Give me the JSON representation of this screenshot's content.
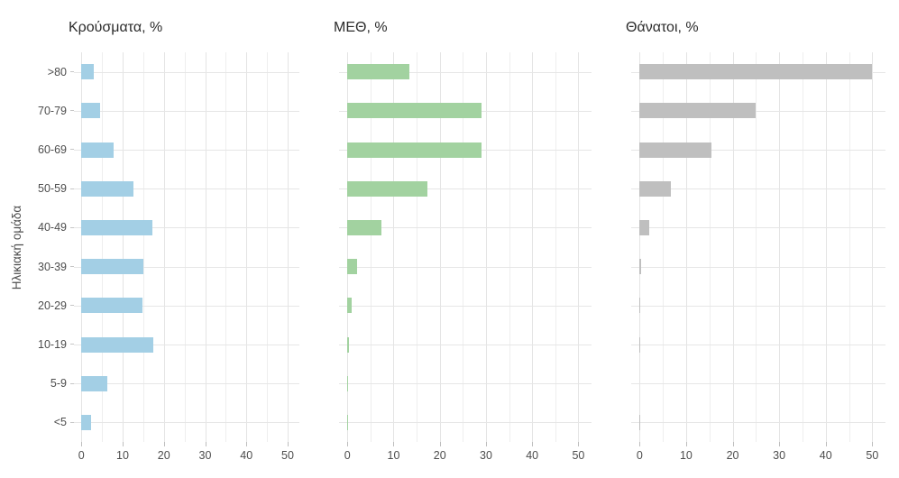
{
  "y_axis": {
    "title": "Ηλικιακή ομάδα",
    "tick_color": "#c6c6c6",
    "text_color": "#4d4d4d"
  },
  "x_axis": {
    "ticks": [
      0,
      10,
      20,
      30,
      40,
      50
    ],
    "minor_step": 5,
    "max": 50,
    "text_color": "#4d4d4d"
  },
  "panels": [
    {
      "title": "Κρούσματα, %"
    },
    {
      "title": "ΜΕΘ, %"
    },
    {
      "title": "Θάνατοι, %"
    }
  ],
  "colors": {
    "cases_bar": "#a3cfe5",
    "icu_bar": "#a2d2a0",
    "deaths_bar": "#bfbfbf",
    "grid_major": "#e4e4e4",
    "grid_minor": "#eeeeee",
    "title_text": "#2b2b2b",
    "axis_text": "#4d4d4d",
    "background": "#ffffff"
  },
  "chart_data": {
    "type": "bar",
    "orientation": "horizontal",
    "title": "",
    "xlabel": "",
    "ylabel": "Ηλικιακή ομάδα",
    "xlim": [
      0,
      50
    ],
    "grid": true,
    "legend": false,
    "categories": [
      ">80",
      "70-79",
      "60-69",
      "50-59",
      "40-49",
      "30-39",
      "20-29",
      "10-19",
      "5-9",
      "<5"
    ],
    "series": [
      {
        "name": "Κρούσματα, %",
        "color": "#a3cfe5",
        "values": [
          3.1,
          4.6,
          7.8,
          12.6,
          17.3,
          15.0,
          14.8,
          17.4,
          6.2,
          2.3
        ]
      },
      {
        "name": "ΜΕΘ, %",
        "color": "#a2d2a0",
        "values": [
          13.4,
          29.0,
          29.0,
          17.4,
          7.3,
          2.1,
          0.9,
          0.3,
          0.1,
          0.2
        ]
      },
      {
        "name": "Θάνατοι, %",
        "color": "#bfbfbf",
        "values": [
          50.0,
          25.0,
          15.4,
          6.8,
          2.1,
          0.35,
          0.1,
          0.15,
          0.0,
          0.05
        ]
      }
    ]
  }
}
